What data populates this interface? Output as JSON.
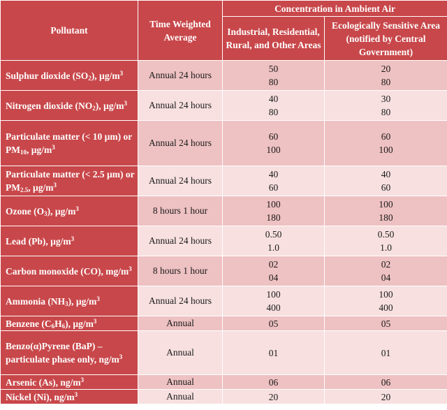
{
  "header": {
    "pollutant": "Pollutant",
    "twa": "Time Weighted Average",
    "concentration": "Concentration in Ambient Air",
    "col_industrial": "Industrial, Residential, Rural, and Other Areas",
    "col_sensitive": "Ecologically Sensitive Area (notified by Central Government)"
  },
  "rows": [
    {
      "pollutant": "Sulphur dioxide (SO<sub>2</sub>), µg/m<sup>3</sup>",
      "average": "Annual 24 hours",
      "industrial": [
        "50",
        "80"
      ],
      "sensitive": [
        "20",
        "80"
      ]
    },
    {
      "pollutant": "Nitrogen dioxide (NO<sub>2</sub>), µg/m<sup>3</sup>",
      "average": "Annual 24 hours",
      "industrial": [
        "40",
        "80"
      ],
      "sensitive": [
        "30",
        "80"
      ]
    },
    {
      "pollutant": "Particulate matter (&lt; 10 µm) or PM<sub>10</sub>, µg/m<sup>3</sup>",
      "average": "Annual 24 hours",
      "industrial": [
        "60",
        "100"
      ],
      "sensitive": [
        "60",
        "100"
      ]
    },
    {
      "pollutant": "Particulate matter (&lt; 2.5 µm) or PM<sub>2.5</sub>, µg/m<sup>3</sup>",
      "average": "Annual 24 hours",
      "industrial": [
        "40",
        "60"
      ],
      "sensitive": [
        "40",
        "60"
      ]
    },
    {
      "pollutant": "Ozone (O<sub>3</sub>), µg/m<sup>3</sup>",
      "average": "8 hours 1 hour",
      "industrial": [
        "100",
        "180"
      ],
      "sensitive": [
        "100",
        "180"
      ]
    },
    {
      "pollutant": "Lead (Pb), µg/m<sup>3</sup>",
      "average": "Annual 24 hours",
      "industrial": [
        "0.50",
        "1.0"
      ],
      "sensitive": [
        "0.50",
        "1.0"
      ]
    },
    {
      "pollutant": "Carbon monoxide (CO), mg/m<sup>3</sup>",
      "average": "8 hours 1 hour",
      "industrial": [
        "02",
        "04"
      ],
      "sensitive": [
        "02",
        "04"
      ]
    },
    {
      "pollutant": "Ammonia (NH<sub>3</sub>), µg/m<sup>3</sup>",
      "average": "Annual 24 hours",
      "industrial": [
        "100",
        "400"
      ],
      "sensitive": [
        "100",
        "400"
      ]
    },
    {
      "pollutant": "Benzene (C<sub>6</sub>H<sub>6</sub>), µg/m<sup>3</sup>",
      "average": "Annual",
      "industrial": [
        "05"
      ],
      "sensitive": [
        "05"
      ]
    },
    {
      "pollutant": "Benzo(α)Pyrene (BaP) – particulate phase only, ng/m<sup>3</sup>",
      "average": "Annual",
      "industrial": [
        "01"
      ],
      "sensitive": [
        "01"
      ]
    },
    {
      "pollutant": "Arsenic (As), ng/m<sup>3</sup>",
      "average": "Annual",
      "industrial": [
        "06"
      ],
      "sensitive": [
        "06"
      ]
    },
    {
      "pollutant": "Nickel (Ni), ng/m<sup>3</sup>",
      "average": "Annual",
      "industrial": [
        "20"
      ],
      "sensitive": [
        "20"
      ]
    }
  ]
}
